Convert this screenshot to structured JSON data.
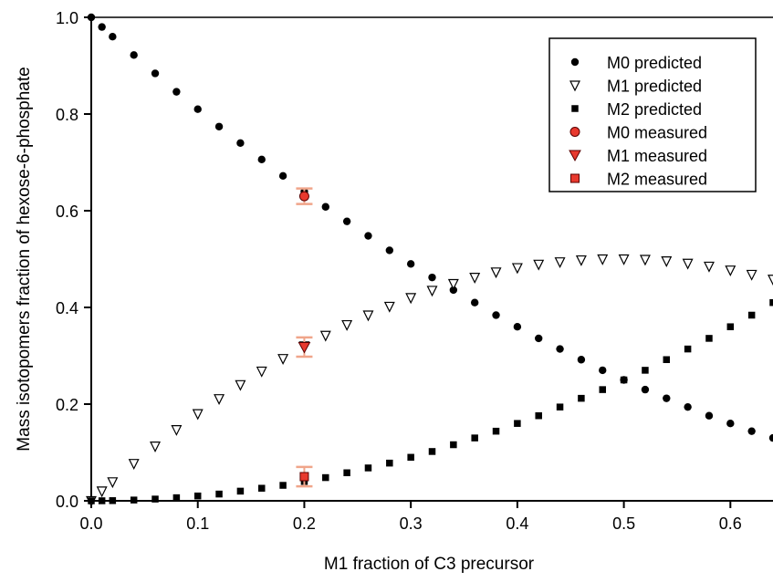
{
  "chart_data": {
    "type": "scatter",
    "xlabel": "M1 fraction of C3 precursor",
    "ylabel": "Mass isotopomers fraction of hexose-6-phosphate",
    "xlim": [
      0,
      0.64
    ],
    "ylim": [
      0,
      1.0
    ],
    "x_ticks": [
      0.0,
      0.1,
      0.2,
      0.3,
      0.4,
      0.5,
      0.6
    ],
    "x_tick_labels": [
      "0.0",
      "0.1",
      "0.2",
      "0.3",
      "0.4",
      "0.5",
      "0.6"
    ],
    "y_ticks": [
      0.0,
      0.2,
      0.4,
      0.6,
      0.8,
      1.0
    ],
    "y_tick_labels": [
      "0.0",
      "0.2",
      "0.4",
      "0.6",
      "0.8",
      "1.0"
    ],
    "grid": false,
    "legend_position": "top-right",
    "series": [
      {
        "name": "M0 predicted",
        "marker": "circle",
        "color": "#000000",
        "x": [
          0,
          0.01,
          0.02,
          0.04,
          0.06,
          0.08,
          0.1,
          0.12,
          0.14,
          0.16,
          0.18,
          0.2,
          0.22,
          0.24,
          0.26,
          0.28,
          0.3,
          0.32,
          0.34,
          0.36,
          0.38,
          0.4,
          0.42,
          0.44,
          0.46,
          0.48,
          0.5,
          0.52,
          0.54,
          0.56,
          0.58,
          0.6,
          0.62,
          0.64
        ],
        "y": [
          1.0,
          0.98,
          0.96,
          0.922,
          0.884,
          0.846,
          0.81,
          0.774,
          0.74,
          0.706,
          0.672,
          0.64,
          0.608,
          0.578,
          0.548,
          0.518,
          0.49,
          0.462,
          0.436,
          0.41,
          0.384,
          0.36,
          0.336,
          0.314,
          0.292,
          0.27,
          0.25,
          0.23,
          0.212,
          0.194,
          0.176,
          0.16,
          0.144,
          0.13
        ]
      },
      {
        "name": "M1 predicted",
        "marker": "triangle-down-open",
        "color": "#000000",
        "x": [
          0,
          0.01,
          0.02,
          0.04,
          0.06,
          0.08,
          0.1,
          0.12,
          0.14,
          0.16,
          0.18,
          0.2,
          0.22,
          0.24,
          0.26,
          0.28,
          0.3,
          0.32,
          0.34,
          0.36,
          0.38,
          0.4,
          0.42,
          0.44,
          0.46,
          0.48,
          0.5,
          0.52,
          0.54,
          0.56,
          0.58,
          0.6,
          0.62,
          0.64
        ],
        "y": [
          0.0,
          0.02,
          0.039,
          0.077,
          0.113,
          0.147,
          0.18,
          0.211,
          0.24,
          0.268,
          0.294,
          0.32,
          0.342,
          0.364,
          0.384,
          0.402,
          0.42,
          0.435,
          0.449,
          0.462,
          0.473,
          0.482,
          0.489,
          0.494,
          0.498,
          0.5,
          0.5,
          0.499,
          0.496,
          0.491,
          0.485,
          0.477,
          0.468,
          0.458
        ]
      },
      {
        "name": "M2 predicted",
        "marker": "square",
        "color": "#000000",
        "x": [
          0,
          0.01,
          0.02,
          0.04,
          0.06,
          0.08,
          0.1,
          0.12,
          0.14,
          0.16,
          0.18,
          0.2,
          0.22,
          0.24,
          0.26,
          0.28,
          0.3,
          0.32,
          0.34,
          0.36,
          0.38,
          0.4,
          0.42,
          0.44,
          0.46,
          0.48,
          0.5,
          0.52,
          0.54,
          0.56,
          0.58,
          0.6,
          0.62,
          0.64
        ],
        "y": [
          0.0,
          0.0001,
          0.0004,
          0.0016,
          0.0036,
          0.0064,
          0.01,
          0.014,
          0.02,
          0.026,
          0.032,
          0.04,
          0.048,
          0.058,
          0.068,
          0.078,
          0.09,
          0.102,
          0.116,
          0.13,
          0.144,
          0.16,
          0.176,
          0.194,
          0.212,
          0.23,
          0.25,
          0.27,
          0.292,
          0.314,
          0.336,
          0.36,
          0.384,
          0.41
        ]
      },
      {
        "name": "M0 measured",
        "marker": "circle",
        "color": "#e8392e",
        "x": [
          0.2
        ],
        "y": [
          0.63
        ],
        "error": [
          0.016
        ]
      },
      {
        "name": "M1 measured",
        "marker": "triangle-down",
        "color": "#e8392e",
        "x": [
          0.2
        ],
        "y": [
          0.318
        ],
        "error": [
          0.02
        ]
      },
      {
        "name": "M2 measured",
        "marker": "square",
        "color": "#e8392e",
        "x": [
          0.2
        ],
        "y": [
          0.05
        ],
        "error": [
          0.02
        ]
      }
    ]
  }
}
